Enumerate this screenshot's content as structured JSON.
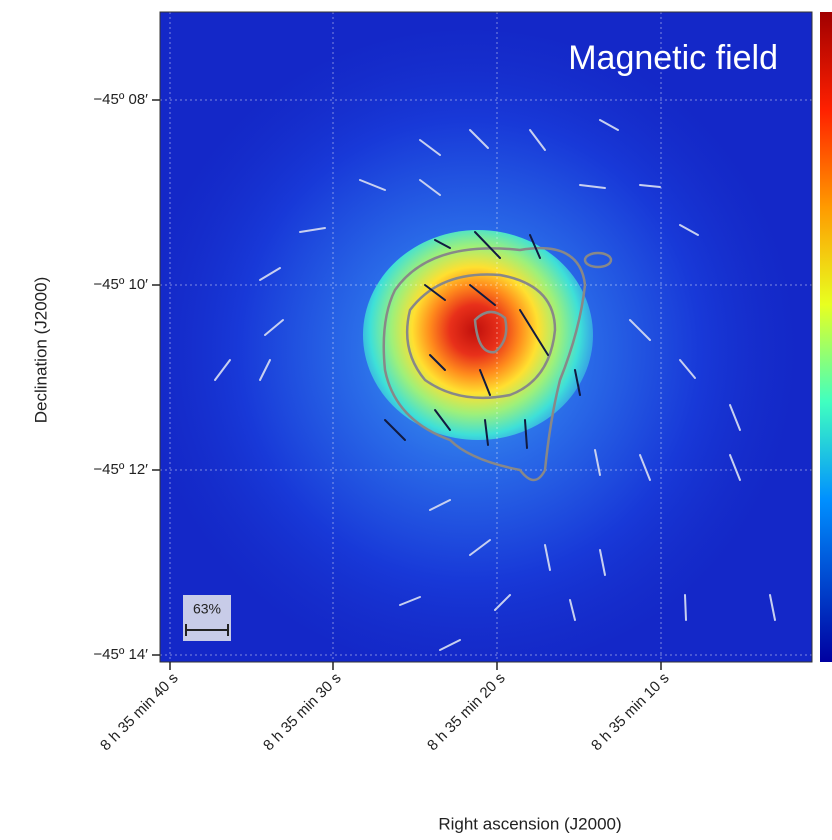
{
  "figure": {
    "label": "Magnetic field",
    "y_axis_title": "Declination (J2000)",
    "x_axis_title": "Right ascension (J2000)",
    "y_tick_labels": [
      "−45º 08′",
      "−45º 10′",
      "−45º 12′",
      "−45º 14′"
    ],
    "x_tick_labels": [
      "8 h 35 min 40 s",
      "8 h 35 min 30 s",
      "8 h 35 min 20 s",
      "8 h 35 min 10 s"
    ],
    "scale_bar_label": "63%"
  }
}
